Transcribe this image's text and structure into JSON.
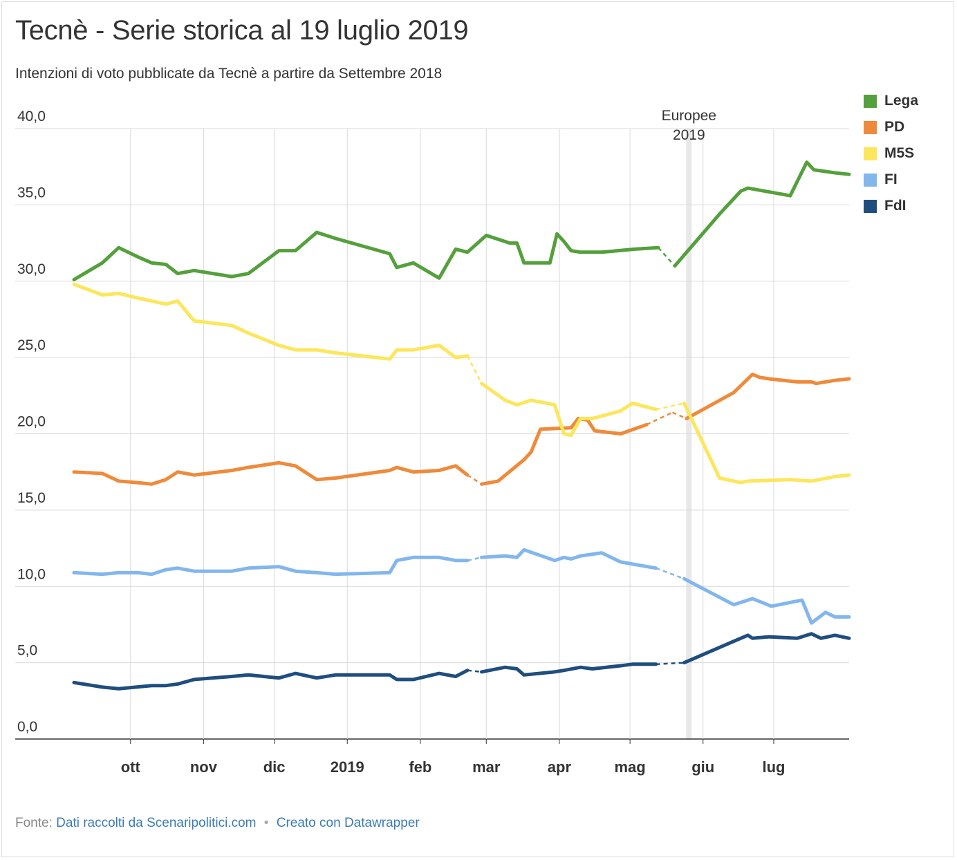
{
  "header": {
    "title": "Tecnè - Serie storica al 19 luglio 2019",
    "subtitle": "Intenzioni di voto pubblicate da Tecnè a partire da Settembre 2018"
  },
  "footer": {
    "source_prefix": "Fonte:",
    "source_link": "Dati raccolti da Scenaripolitici.com",
    "separator": "•",
    "credit_link": "Creato con Datawrapper"
  },
  "chart_data": {
    "type": "line",
    "x_range": [
      "2018-09-07",
      "2019-07-19"
    ],
    "ylim": [
      0,
      40
    ],
    "y_ticks": [
      0,
      5,
      10,
      15,
      20,
      25,
      30,
      35,
      40
    ],
    "y_tick_labels": [
      "0,0",
      "5,0",
      "10,0",
      "15,0",
      "20,0",
      "25,0",
      "30,0",
      "35,0",
      "40,0"
    ],
    "x_ticks": [
      {
        "date": "2018-10-01",
        "label": "ott"
      },
      {
        "date": "2018-11-01",
        "label": "nov"
      },
      {
        "date": "2018-12-01",
        "label": "dic"
      },
      {
        "date": "2019-01-01",
        "label": "2019"
      },
      {
        "date": "2019-02-01",
        "label": "feb"
      },
      {
        "date": "2019-03-01",
        "label": "mar"
      },
      {
        "date": "2019-04-01",
        "label": "apr"
      },
      {
        "date": "2019-05-01",
        "label": "mag"
      },
      {
        "date": "2019-06-01",
        "label": "giu"
      },
      {
        "date": "2019-07-01",
        "label": "lug"
      }
    ],
    "grid": true,
    "legend_position": "right",
    "annotation": {
      "date": "2019-05-26",
      "lines": [
        "Europee",
        "2019"
      ]
    },
    "dashed_segments": [
      [
        "2019-02-19",
        "2019-02-27"
      ],
      [
        "2019-05-08",
        "2019-05-27"
      ]
    ],
    "series": [
      {
        "name": "Lega",
        "color": "#54a03c",
        "points": [
          [
            "2018-09-07",
            30.1
          ],
          [
            "2018-09-19",
            31.2
          ],
          [
            "2018-09-26",
            32.2
          ],
          [
            "2018-10-04",
            31.6
          ],
          [
            "2018-10-10",
            31.2
          ],
          [
            "2018-10-16",
            31.1
          ],
          [
            "2018-10-21",
            30.5
          ],
          [
            "2018-10-28",
            30.7
          ],
          [
            "2018-11-13",
            30.3
          ],
          [
            "2018-11-20",
            30.5
          ],
          [
            "2018-12-03",
            32.0
          ],
          [
            "2018-12-10",
            32.0
          ],
          [
            "2018-12-19",
            33.2
          ],
          [
            "2018-12-27",
            32.8
          ],
          [
            "2019-01-19",
            31.8
          ],
          [
            "2019-01-22",
            30.9
          ],
          [
            "2019-01-29",
            31.2
          ],
          [
            "2019-02-09",
            30.2
          ],
          [
            "2019-02-16",
            32.1
          ],
          [
            "2019-02-21",
            31.9
          ],
          [
            "2019-02-29",
            33.0
          ],
          [
            "2019-03-11",
            32.5
          ],
          [
            "2019-03-14",
            32.5
          ],
          [
            "2019-03-17",
            31.2
          ],
          [
            "2019-03-28",
            31.2
          ],
          [
            "2019-03-31",
            33.1
          ],
          [
            "2019-04-03",
            32.6
          ],
          [
            "2019-04-06",
            32.0
          ],
          [
            "2019-04-10",
            31.9
          ],
          [
            "2019-04-19",
            31.9
          ],
          [
            "2019-05-03",
            32.1
          ],
          [
            "2019-05-13",
            32.2
          ],
          [
            "2019-05-20",
            31.0
          ],
          [
            "2019-06-08",
            34.4
          ],
          [
            "2019-06-17",
            35.9
          ],
          [
            "2019-06-20",
            36.1
          ],
          [
            "2019-07-08",
            35.6
          ],
          [
            "2019-07-15",
            37.8
          ],
          [
            "2019-07-18",
            37.3
          ],
          [
            "2019-07-27",
            37.1
          ],
          [
            "2019-08-02",
            37.0
          ]
        ]
      },
      {
        "name": "PD",
        "color": "#ef8a3a",
        "points": [
          [
            "2018-09-07",
            17.5
          ],
          [
            "2018-09-19",
            17.4
          ],
          [
            "2018-09-26",
            16.9
          ],
          [
            "2018-10-04",
            16.8
          ],
          [
            "2018-10-10",
            16.7
          ],
          [
            "2018-10-16",
            17.0
          ],
          [
            "2018-10-21",
            17.5
          ],
          [
            "2018-10-28",
            17.3
          ],
          [
            "2018-11-13",
            17.6
          ],
          [
            "2018-11-20",
            17.8
          ],
          [
            "2018-12-03",
            18.1
          ],
          [
            "2018-12-10",
            17.9
          ],
          [
            "2018-12-19",
            17.0
          ],
          [
            "2018-12-27",
            17.1
          ],
          [
            "2019-01-19",
            17.6
          ],
          [
            "2019-01-22",
            17.8
          ],
          [
            "2019-01-29",
            17.5
          ],
          [
            "2019-02-09",
            17.6
          ],
          [
            "2019-02-16",
            17.9
          ],
          [
            "2019-02-21",
            17.3
          ],
          [
            "2019-02-27",
            16.7
          ],
          [
            "2019-03-06",
            16.9
          ],
          [
            "2019-03-17",
            18.3
          ],
          [
            "2019-03-20",
            18.8
          ],
          [
            "2019-03-24",
            20.3
          ],
          [
            "2019-04-06",
            20.4
          ],
          [
            "2019-04-09",
            21.0
          ],
          [
            "2019-04-13",
            20.9
          ],
          [
            "2019-04-16",
            20.2
          ],
          [
            "2019-04-27",
            20.0
          ],
          [
            "2019-05-08",
            20.6
          ],
          [
            "2019-05-19",
            21.4
          ],
          [
            "2019-05-25",
            21.0
          ],
          [
            "2019-06-14",
            22.7
          ],
          [
            "2019-06-22",
            23.9
          ],
          [
            "2019-06-25",
            23.7
          ],
          [
            "2019-06-29",
            23.6
          ],
          [
            "2019-07-11",
            23.4
          ],
          [
            "2019-07-17",
            23.4
          ],
          [
            "2019-07-19",
            23.3
          ],
          [
            "2019-07-27",
            23.5
          ],
          [
            "2019-08-02",
            23.6
          ]
        ]
      },
      {
        "name": "M5S",
        "color": "#fce65c",
        "points": [
          [
            "2018-09-07",
            29.8
          ],
          [
            "2018-09-19",
            29.1
          ],
          [
            "2018-09-26",
            29.2
          ],
          [
            "2018-10-04",
            28.9
          ],
          [
            "2018-10-10",
            28.7
          ],
          [
            "2018-10-16",
            28.5
          ],
          [
            "2018-10-21",
            28.7
          ],
          [
            "2018-10-28",
            27.4
          ],
          [
            "2018-11-13",
            27.1
          ],
          [
            "2018-11-20",
            26.6
          ],
          [
            "2018-12-03",
            25.8
          ],
          [
            "2018-12-10",
            25.5
          ],
          [
            "2018-12-19",
            25.5
          ],
          [
            "2018-12-27",
            25.3
          ],
          [
            "2019-01-19",
            24.9
          ],
          [
            "2019-01-22",
            25.5
          ],
          [
            "2019-01-29",
            25.5
          ],
          [
            "2019-02-09",
            25.8
          ],
          [
            "2019-02-16",
            25.0
          ],
          [
            "2019-02-21",
            25.1
          ],
          [
            "2019-02-27",
            23.3
          ],
          [
            "2019-03-09",
            22.2
          ],
          [
            "2019-03-14",
            21.9
          ],
          [
            "2019-03-20",
            22.2
          ],
          [
            "2019-03-30",
            21.9
          ],
          [
            "2019-04-03",
            20.0
          ],
          [
            "2019-04-06",
            19.9
          ],
          [
            "2019-04-10",
            21.0
          ],
          [
            "2019-04-15",
            21.0
          ],
          [
            "2019-04-27",
            21.5
          ],
          [
            "2019-05-02",
            22.0
          ],
          [
            "2019-05-12",
            21.6
          ],
          [
            "2019-05-24",
            22.0
          ],
          [
            "2019-06-08",
            17.1
          ],
          [
            "2019-06-17",
            16.8
          ],
          [
            "2019-06-20",
            16.9
          ],
          [
            "2019-07-08",
            17.0
          ],
          [
            "2019-07-17",
            16.9
          ],
          [
            "2019-07-27",
            17.2
          ],
          [
            "2019-08-02",
            17.3
          ]
        ]
      },
      {
        "name": "FI",
        "color": "#82b6ed",
        "points": [
          [
            "2018-09-07",
            10.9
          ],
          [
            "2018-09-19",
            10.8
          ],
          [
            "2018-09-26",
            10.9
          ],
          [
            "2018-10-04",
            10.9
          ],
          [
            "2018-10-10",
            10.8
          ],
          [
            "2018-10-16",
            11.1
          ],
          [
            "2018-10-21",
            11.2
          ],
          [
            "2018-10-28",
            11.0
          ],
          [
            "2018-11-13",
            11.0
          ],
          [
            "2018-11-20",
            11.2
          ],
          [
            "2018-12-03",
            11.3
          ],
          [
            "2018-12-10",
            11.0
          ],
          [
            "2018-12-19",
            10.9
          ],
          [
            "2018-12-27",
            10.8
          ],
          [
            "2019-01-19",
            10.9
          ],
          [
            "2019-01-22",
            11.7
          ],
          [
            "2019-01-29",
            11.9
          ],
          [
            "2019-02-09",
            11.9
          ],
          [
            "2019-02-16",
            11.7
          ],
          [
            "2019-02-21",
            11.7
          ],
          [
            "2019-02-27",
            11.9
          ],
          [
            "2019-03-09",
            12.0
          ],
          [
            "2019-03-14",
            11.9
          ],
          [
            "2019-03-17",
            12.4
          ],
          [
            "2019-03-30",
            11.7
          ],
          [
            "2019-04-03",
            11.9
          ],
          [
            "2019-04-06",
            11.8
          ],
          [
            "2019-04-10",
            12.0
          ],
          [
            "2019-04-19",
            12.2
          ],
          [
            "2019-04-27",
            11.6
          ],
          [
            "2019-05-12",
            11.2
          ],
          [
            "2019-05-24",
            10.5
          ],
          [
            "2019-06-14",
            8.8
          ],
          [
            "2019-06-22",
            9.2
          ],
          [
            "2019-06-30",
            8.7
          ],
          [
            "2019-07-13",
            9.1
          ],
          [
            "2019-07-17",
            7.6
          ],
          [
            "2019-07-23",
            8.3
          ],
          [
            "2019-07-27",
            8.0
          ],
          [
            "2019-08-02",
            8.0
          ]
        ]
      },
      {
        "name": "FdI",
        "color": "#1f4e7e",
        "points": [
          [
            "2018-09-07",
            3.7
          ],
          [
            "2018-09-19",
            3.4
          ],
          [
            "2018-09-26",
            3.3
          ],
          [
            "2018-10-10",
            3.5
          ],
          [
            "2018-10-16",
            3.5
          ],
          [
            "2018-10-21",
            3.6
          ],
          [
            "2018-10-28",
            3.9
          ],
          [
            "2018-11-13",
            4.1
          ],
          [
            "2018-11-20",
            4.2
          ],
          [
            "2018-12-03",
            4.0
          ],
          [
            "2018-12-10",
            4.3
          ],
          [
            "2018-12-19",
            4.0
          ],
          [
            "2018-12-27",
            4.2
          ],
          [
            "2019-01-19",
            4.2
          ],
          [
            "2019-01-22",
            3.9
          ],
          [
            "2019-01-29",
            3.9
          ],
          [
            "2019-02-09",
            4.3
          ],
          [
            "2019-02-16",
            4.1
          ],
          [
            "2019-02-21",
            4.5
          ],
          [
            "2019-02-27",
            4.4
          ],
          [
            "2019-03-09",
            4.7
          ],
          [
            "2019-03-14",
            4.6
          ],
          [
            "2019-03-17",
            4.2
          ],
          [
            "2019-03-30",
            4.4
          ],
          [
            "2019-04-03",
            4.5
          ],
          [
            "2019-04-10",
            4.7
          ],
          [
            "2019-04-15",
            4.6
          ],
          [
            "2019-04-27",
            4.8
          ],
          [
            "2019-05-02",
            4.9
          ],
          [
            "2019-05-12",
            4.9
          ],
          [
            "2019-05-24",
            5.0
          ],
          [
            "2019-06-14",
            6.4
          ],
          [
            "2019-06-20",
            6.8
          ],
          [
            "2019-06-22",
            6.6
          ],
          [
            "2019-06-29",
            6.7
          ],
          [
            "2019-07-11",
            6.6
          ],
          [
            "2019-07-17",
            6.9
          ],
          [
            "2019-07-21",
            6.6
          ],
          [
            "2019-07-27",
            6.8
          ],
          [
            "2019-08-02",
            6.6
          ]
        ]
      }
    ]
  }
}
